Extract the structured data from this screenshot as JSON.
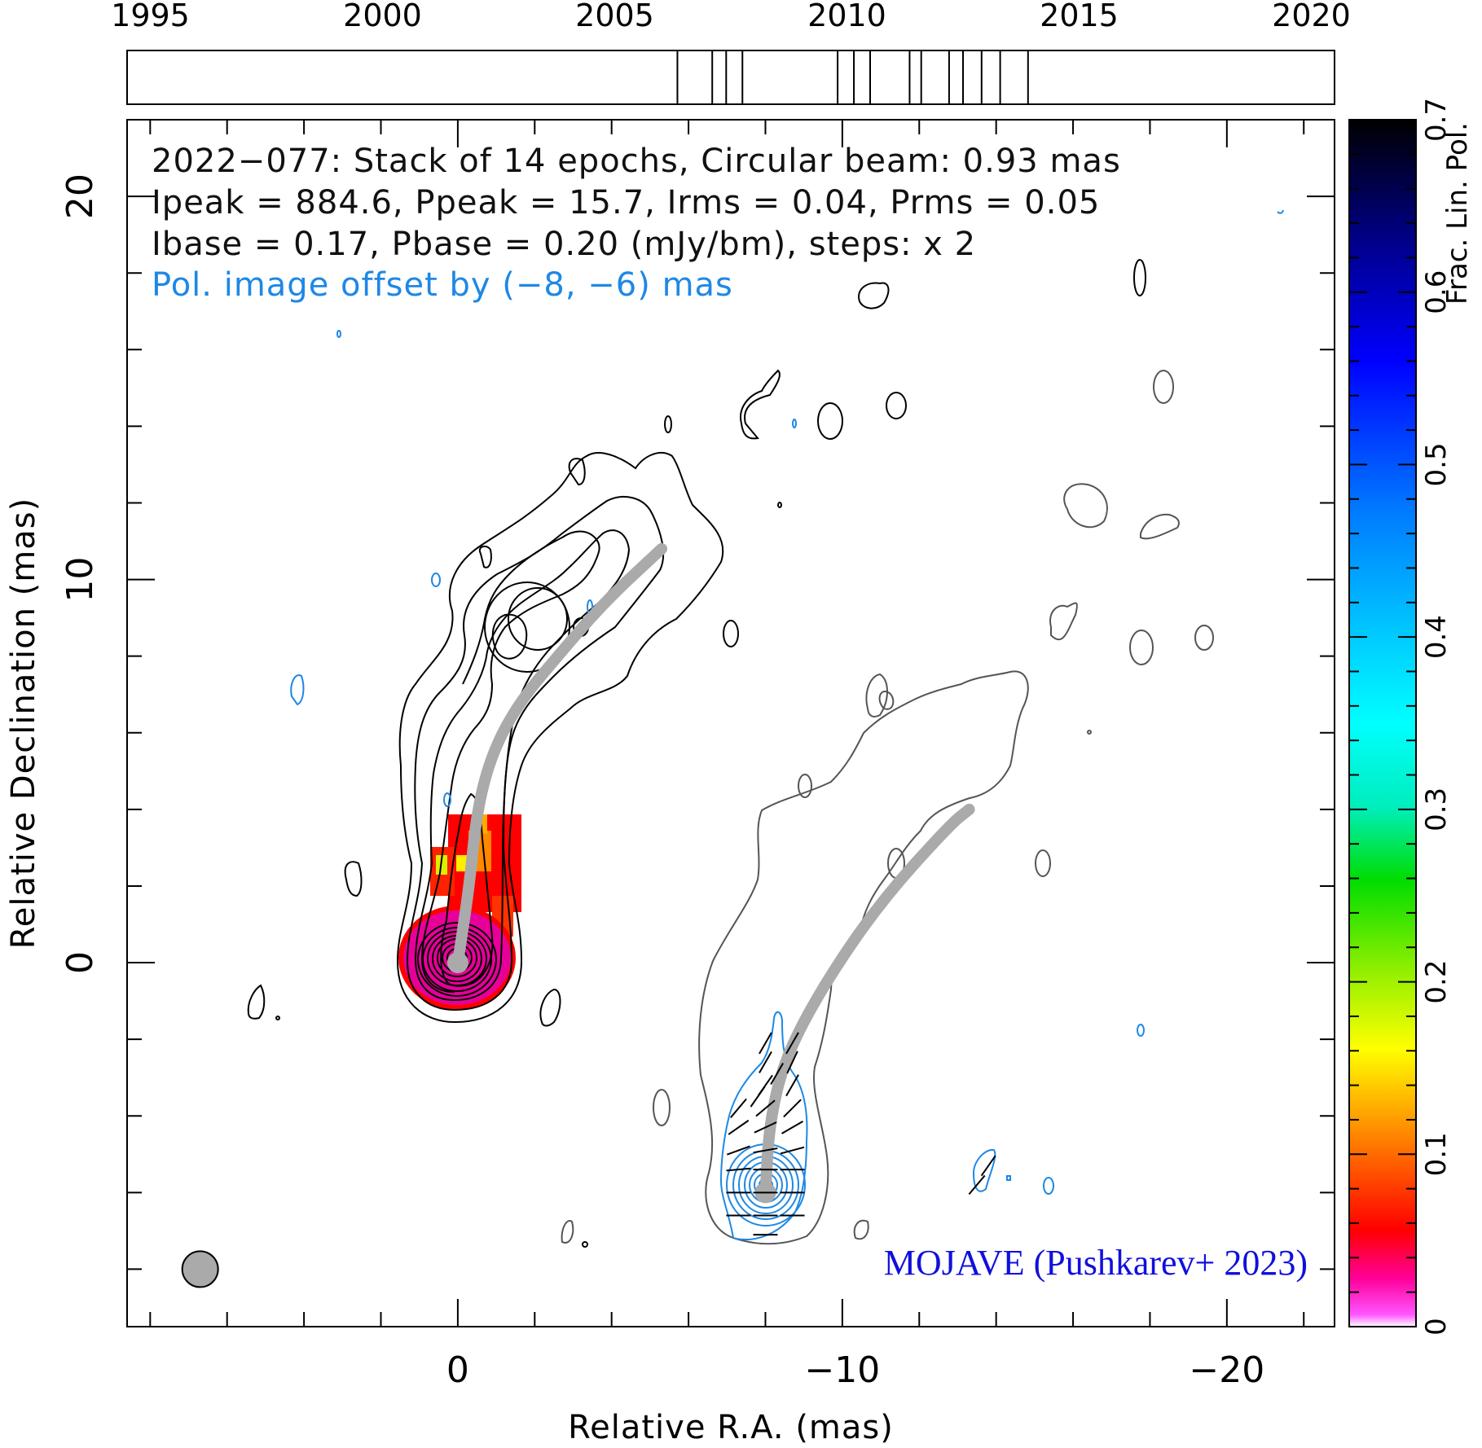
{
  "chart_data": {
    "type": "contour-image",
    "source_name": "2022-077",
    "info_lines": [
      "2022−077: Stack of 14 epochs, Circular beam: 0.93 mas",
      "Ipeak = 884.6, Ppeak = 15.7, Irms = 0.04, Prms = 0.05",
      "Ibase = 0.17, Pbase = 0.20 (mJy/bm), steps: x 2",
      "Pol. image offset by (−8, −6) mas"
    ],
    "credit": "MOJAVE (Pushkarev+ 2023)",
    "xlabel": "Relative R.A. (mas)",
    "ylabel": "Relative Declination (mas)",
    "xlim": [
      8.6,
      -22.8
    ],
    "ylim": [
      -9.5,
      22.0
    ],
    "x_ticks": [
      0,
      -10,
      -20
    ],
    "x_tick_labels": [
      "0",
      "−10",
      "−20"
    ],
    "y_ticks": [
      0,
      10,
      20
    ],
    "y_tick_labels": [
      "0",
      "10",
      "20"
    ],
    "epoch_bar": {
      "xlim": [
        1994.5,
        2020.5
      ],
      "tick_years": [
        1995,
        2000,
        2005,
        2010,
        2015,
        2020
      ],
      "tick_labels": [
        "1995",
        "2000",
        "2005",
        "2010",
        "2015",
        "2020"
      ],
      "epochs": [
        2006.35,
        2007.1,
        2007.4,
        2007.75,
        2009.8,
        2010.15,
        2010.5,
        2011.35,
        2011.6,
        2012.2,
        2012.5,
        2012.9,
        2013.3,
        2013.9
      ]
    },
    "colorbar": {
      "label": "Frac. Lin. Pol.",
      "range": [
        0,
        0.7
      ],
      "ticks": [
        0,
        0.1,
        0.2,
        0.3,
        0.4,
        0.5,
        0.6,
        0.7
      ],
      "tick_labels": [
        "0",
        "0.1",
        "0.2",
        "0.3",
        "0.4",
        "0.5",
        "0.6",
        "0.7"
      ]
    },
    "ridge_lines": {
      "total_intensity": [
        [
          0,
          0
        ],
        [
          -0.3,
          2
        ],
        [
          -0.5,
          4
        ],
        [
          -0.9,
          5.5
        ],
        [
          -1.6,
          6.8
        ],
        [
          -2.6,
          8
        ],
        [
          -3.8,
          9.4
        ],
        [
          -5.3,
          10.8
        ]
      ],
      "polarization": [
        [
          -8,
          -6
        ],
        [
          -8.1,
          -4.2
        ],
        [
          -8.5,
          -2.5
        ],
        [
          -9.5,
          -0.6
        ],
        [
          -11,
          1.6
        ],
        [
          -12.8,
          3.6
        ],
        [
          -13.3,
          4.0
        ]
      ]
    },
    "beam": {
      "ra": 6.7,
      "dec": -8.0,
      "diameter_mas": 0.93
    },
    "evpa_ticks": [
      [
        -8,
        -7.1,
        0
      ],
      [
        -8,
        -6.6,
        0
      ],
      [
        -8,
        -6.0,
        0
      ],
      [
        -8,
        -5.4,
        0
      ],
      [
        -8,
        -4.9,
        10
      ],
      [
        -8,
        -4.3,
        25
      ],
      [
        -8,
        -3.8,
        40
      ],
      [
        -8,
        -3.2,
        55
      ],
      [
        -8,
        -2.6,
        60
      ],
      [
        -8,
        -2.1,
        60
      ],
      [
        -7.3,
        -5.4,
        5
      ],
      [
        -7.3,
        -4.9,
        20
      ],
      [
        -7.3,
        -4.3,
        35
      ],
      [
        -7.3,
        -3.8,
        50
      ],
      [
        -8.7,
        -5.4,
        0
      ],
      [
        -8.7,
        -4.9,
        15
      ],
      [
        -8.7,
        -4.3,
        30
      ],
      [
        -8.7,
        -3.8,
        45
      ],
      [
        -8.7,
        -3.2,
        60
      ],
      [
        -8.7,
        -2.6,
        65
      ],
      [
        -8.7,
        -2.1,
        60
      ],
      [
        -7.3,
        -6.0,
        0
      ],
      [
        -7.3,
        -6.6,
        0
      ],
      [
        -8.7,
        -6.0,
        0
      ],
      [
        -8.7,
        -6.6,
        0
      ],
      [
        -7.8,
        -3.5,
        55
      ],
      [
        -8.3,
        -2.9,
        60
      ],
      [
        -13.8,
        -5.3,
        55
      ],
      [
        -13.5,
        -5.8,
        50
      ]
    ]
  },
  "colors": {
    "contour_total": "#000000",
    "contour_stack": "#555555",
    "contour_pol": "#1e88e5",
    "ridge": "#aaaaaa",
    "credit": "#1010dd",
    "pol_offset_note": "#1e88e5"
  }
}
